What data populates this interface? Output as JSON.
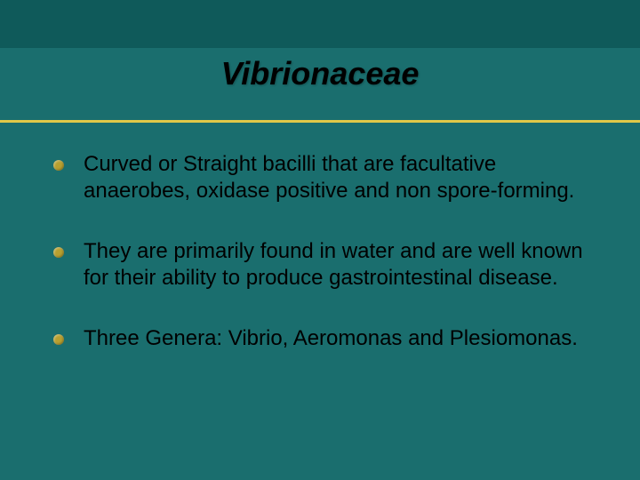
{
  "slide": {
    "background_color": "#1a6e6e",
    "top_band_color": "#0f5a5a",
    "divider_color": "#e0c848",
    "title": "Vibrionaceae",
    "title_fontsize": 36,
    "title_style": "italic bold",
    "bullet_color": "#b8a030",
    "body_fontsize": 24,
    "bullets": [
      "Curved or Straight bacilli that are facultative anaerobes, oxidase positive and non spore-forming.",
      "They are primarily found in water and are well known for their ability to produce gastrointestinal disease.",
      "Three Genera: Vibrio, Aeromonas and Plesiomonas."
    ]
  }
}
